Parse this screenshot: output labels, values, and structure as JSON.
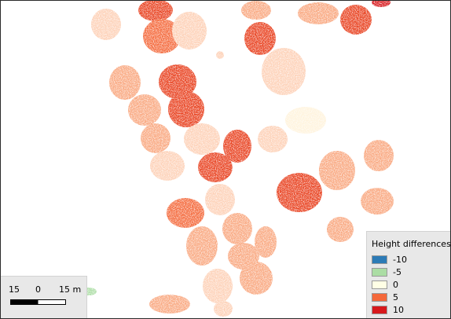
{
  "legend": {
    "title": "Height differences",
    "items": [
      {
        "label": "-10",
        "color": "#2c7bb6"
      },
      {
        "label": "-5",
        "color": "#abdda4"
      },
      {
        "label": "0",
        "color": "#ffffe5"
      },
      {
        "label": "5",
        "color": "#f4683a"
      },
      {
        "label": "10",
        "color": "#d7191c"
      }
    ]
  },
  "scalebar": {
    "labels": [
      "15",
      "0",
      "15 m"
    ]
  },
  "palette": {
    "light_peach": "#fdd0b6",
    "salmon": "#f9a77f",
    "orange": "#f4683a",
    "red_orange": "#e8401f",
    "red": "#d7191c",
    "cream": "#fff3dc",
    "green": "#abdda4"
  }
}
